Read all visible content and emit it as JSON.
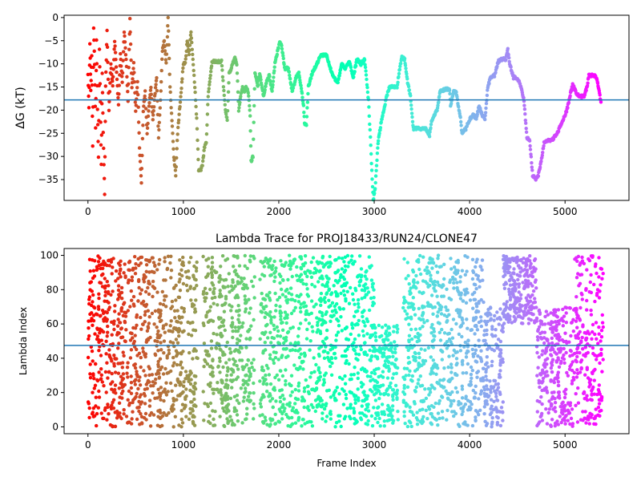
{
  "chart_data": [
    {
      "type": "scatter",
      "title": "",
      "xlabel": "",
      "ylabel": "ΔG (kT)",
      "ylabel_symbol": "ΔG",
      "ylabel_unit": " (kT)",
      "xlim": [
        -250,
        5670
      ],
      "ylim": [
        -39.5,
        0.5
      ],
      "xticks": [
        0,
        1000,
        2000,
        3000,
        4000,
        5000
      ],
      "yticks": [
        0,
        -5,
        -10,
        -15,
        -20,
        -25,
        -30,
        -35
      ],
      "xtick_labels": [
        "0",
        "1000",
        "2000",
        "3000",
        "4000",
        "5000"
      ],
      "ytick_labels": [
        "0",
        "−5",
        "−10",
        "−15",
        "−20",
        "−25",
        "−30",
        "−35"
      ],
      "grid": false,
      "colormap": "rainbow",
      "hline": -17.8,
      "hline_color": "#1f77b4",
      "trace_points": [
        [
          0,
          -12
        ],
        [
          10,
          -19.5
        ],
        [
          20,
          -5.5
        ],
        [
          30,
          -16
        ],
        [
          40,
          -8
        ],
        [
          50,
          -28
        ],
        [
          60,
          -2
        ],
        [
          70,
          -10
        ],
        [
          80,
          -24
        ],
        [
          90,
          -5
        ],
        [
          100,
          -20
        ],
        [
          110,
          -30
        ],
        [
          120,
          -7
        ],
        [
          130,
          -18
        ],
        [
          140,
          -32
        ],
        [
          150,
          -12
        ],
        [
          160,
          -25
        ],
        [
          175,
          -38
        ],
        [
          185,
          -15
        ],
        [
          200,
          -3
        ],
        [
          220,
          -20
        ],
        [
          240,
          -10
        ],
        [
          260,
          -15
        ],
        [
          280,
          -5
        ],
        [
          300,
          -12
        ],
        [
          320,
          -19
        ],
        [
          340,
          -8
        ],
        [
          360,
          -14
        ],
        [
          380,
          -3
        ],
        [
          400,
          -9
        ],
        [
          420,
          -18
        ],
        [
          440,
          0
        ],
        [
          460,
          -15
        ],
        [
          480,
          -10
        ],
        [
          500,
          -20
        ],
        [
          520,
          -14
        ],
        [
          540,
          -28
        ],
        [
          560,
          -36
        ],
        [
          580,
          -20
        ],
        [
          600,
          -16
        ],
        [
          620,
          -25
        ],
        [
          640,
          -19
        ],
        [
          660,
          -15
        ],
        [
          680,
          -22
        ],
        [
          700,
          -17
        ],
        [
          720,
          -13
        ],
        [
          740,
          -26
        ],
        [
          760,
          -18
        ],
        [
          780,
          -7
        ],
        [
          800,
          -5
        ],
        [
          820,
          -10
        ],
        [
          840,
          0
        ],
        [
          860,
          -15
        ],
        [
          880,
          -22
        ],
        [
          900,
          -30
        ],
        [
          920,
          -34
        ],
        [
          940,
          -25
        ],
        [
          960,
          -20
        ],
        [
          980,
          -15
        ],
        [
          1000,
          -10
        ],
        [
          1020,
          -10
        ],
        [
          1040,
          -5
        ],
        [
          1060,
          -8
        ],
        [
          1080,
          -3
        ],
        [
          1100,
          -9
        ],
        [
          1120,
          -15
        ],
        [
          1140,
          -22
        ],
        [
          1160,
          -33
        ],
        [
          1180,
          -33
        ],
        [
          1200,
          -32
        ],
        [
          1220,
          -28
        ],
        [
          1240,
          -27
        ],
        [
          1260,
          -17
        ],
        [
          1280,
          -13
        ],
        [
          1300,
          -9.5
        ],
        [
          1350,
          -9.5
        ],
        [
          1400,
          -9.5
        ],
        [
          1440,
          -20
        ],
        [
          1460,
          -22
        ],
        [
          1480,
          -12
        ],
        [
          1500,
          -11
        ],
        [
          1540,
          -8.5
        ],
        [
          1560,
          -10
        ],
        [
          1580,
          -20
        ],
        [
          1600,
          -17
        ],
        [
          1620,
          -15
        ],
        [
          1640,
          -16
        ],
        [
          1660,
          -15
        ],
        [
          1680,
          -16
        ],
        [
          1700,
          -21
        ],
        [
          1710,
          -31
        ],
        [
          1730,
          -30
        ],
        [
          1750,
          -12
        ],
        [
          1780,
          -15
        ],
        [
          1800,
          -12
        ],
        [
          1840,
          -17
        ],
        [
          1870,
          -14
        ],
        [
          1900,
          -12.5
        ],
        [
          1930,
          -16
        ],
        [
          1960,
          -10
        ],
        [
          1990,
          -7
        ],
        [
          2010,
          -5.5
        ],
        [
          2030,
          -6
        ],
        [
          2060,
          -11
        ],
        [
          2100,
          -11
        ],
        [
          2140,
          -16
        ],
        [
          2180,
          -13
        ],
        [
          2210,
          -12
        ],
        [
          2240,
          -16
        ],
        [
          2260,
          -19
        ],
        [
          2270,
          -23
        ],
        [
          2290,
          -23
        ],
        [
          2310,
          -15
        ],
        [
          2350,
          -12
        ],
        [
          2400,
          -10
        ],
        [
          2440,
          -8.2
        ],
        [
          2500,
          -8.2
        ],
        [
          2540,
          -11
        ],
        [
          2580,
          -13
        ],
        [
          2620,
          -14
        ],
        [
          2660,
          -10
        ],
        [
          2700,
          -11
        ],
        [
          2740,
          -9.5
        ],
        [
          2780,
          -13
        ],
        [
          2820,
          -9
        ],
        [
          2860,
          -10
        ],
        [
          2900,
          -9
        ],
        [
          2940,
          -18
        ],
        [
          2960,
          -26
        ],
        [
          2975,
          -33
        ],
        [
          2990,
          -39.5
        ],
        [
          3010,
          -37
        ],
        [
          3040,
          -27
        ],
        [
          3070,
          -23
        ],
        [
          3100,
          -20
        ],
        [
          3130,
          -17
        ],
        [
          3160,
          -15
        ],
        [
          3200,
          -15
        ],
        [
          3240,
          -15
        ],
        [
          3260,
          -12
        ],
        [
          3290,
          -8.5
        ],
        [
          3320,
          -9
        ],
        [
          3350,
          -14
        ],
        [
          3380,
          -17
        ],
        [
          3410,
          -24
        ],
        [
          3460,
          -24
        ],
        [
          3500,
          -24
        ],
        [
          3540,
          -24
        ],
        [
          3580,
          -25.5
        ],
        [
          3600,
          -22.5
        ],
        [
          3630,
          -21
        ],
        [
          3660,
          -20
        ],
        [
          3690,
          -16
        ],
        [
          3740,
          -15.5
        ],
        [
          3790,
          -15.5
        ],
        [
          3800,
          -19
        ],
        [
          3830,
          -16
        ],
        [
          3860,
          -16
        ],
        [
          3880,
          -19
        ],
        [
          3900,
          -21
        ],
        [
          3920,
          -25
        ],
        [
          3960,
          -24
        ],
        [
          4000,
          -22
        ],
        [
          4040,
          -21
        ],
        [
          4070,
          -22
        ],
        [
          4100,
          -19
        ],
        [
          4130,
          -21
        ],
        [
          4160,
          -22
        ],
        [
          4190,
          -15
        ],
        [
          4220,
          -13
        ],
        [
          4260,
          -12.5
        ],
        [
          4300,
          -9.5
        ],
        [
          4340,
          -9
        ],
        [
          4380,
          -9
        ],
        [
          4400,
          -7
        ],
        [
          4420,
          -10
        ],
        [
          4460,
          -13
        ],
        [
          4500,
          -13
        ],
        [
          4540,
          -15
        ],
        [
          4570,
          -18
        ],
        [
          4600,
          -26
        ],
        [
          4630,
          -26.5
        ],
        [
          4660,
          -34
        ],
        [
          4690,
          -35
        ],
        [
          4720,
          -34
        ],
        [
          4750,
          -31
        ],
        [
          4780,
          -27
        ],
        [
          4820,
          -26.5
        ],
        [
          4860,
          -26.5
        ],
        [
          4900,
          -25.5
        ],
        [
          4940,
          -24
        ],
        [
          4980,
          -22
        ],
        [
          5020,
          -20
        ],
        [
          5050,
          -17
        ],
        [
          5080,
          -14.5
        ],
        [
          5120,
          -16.5
        ],
        [
          5160,
          -17
        ],
        [
          5200,
          -17
        ],
        [
          5230,
          -15
        ],
        [
          5250,
          -12.5
        ],
        [
          5290,
          -12.5
        ],
        [
          5320,
          -12.5
        ],
        [
          5350,
          -15
        ],
        [
          5380,
          -19
        ]
      ]
    },
    {
      "type": "scatter",
      "title": "Lambda Trace for PROJ18433/RUN24/CLONE47",
      "xlabel": "Frame Index",
      "ylabel": "Lambda Index",
      "xlim": [
        -250,
        5670
      ],
      "ylim": [
        -4,
        104
      ],
      "xticks": [
        0,
        1000,
        2000,
        3000,
        4000,
        5000
      ],
      "yticks": [
        0,
        20,
        40,
        60,
        80,
        100
      ],
      "xtick_labels": [
        "0",
        "1000",
        "2000",
        "3000",
        "4000",
        "5000"
      ],
      "ytick_labels": [
        "0",
        "20",
        "40",
        "60",
        "80",
        "100"
      ],
      "grid": false,
      "colormap": "rainbow",
      "hline": 47.5,
      "hline_color": "#1f77b4",
      "x_range": [
        0,
        5400
      ],
      "y_range": [
        0,
        100
      ],
      "bands": [
        [
          0,
          150,
          0,
          100
        ],
        [
          150,
          900,
          0,
          100
        ],
        [
          900,
          1150,
          0,
          100
        ],
        [
          1200,
          1500,
          0,
          100
        ],
        [
          1500,
          1750,
          0,
          100
        ],
        [
          1800,
          2200,
          0,
          100
        ],
        [
          2200,
          2700,
          0,
          100
        ],
        [
          2700,
          3000,
          0,
          100
        ],
        [
          3000,
          3250,
          0,
          60
        ],
        [
          3300,
          3450,
          0,
          100
        ],
        [
          3450,
          3900,
          0,
          100
        ],
        [
          3900,
          4150,
          0,
          100
        ],
        [
          4150,
          4350,
          0,
          70
        ],
        [
          4350,
          4700,
          60,
          100
        ],
        [
          4700,
          5100,
          0,
          70
        ],
        [
          5100,
          5400,
          0,
          100
        ]
      ]
    }
  ]
}
